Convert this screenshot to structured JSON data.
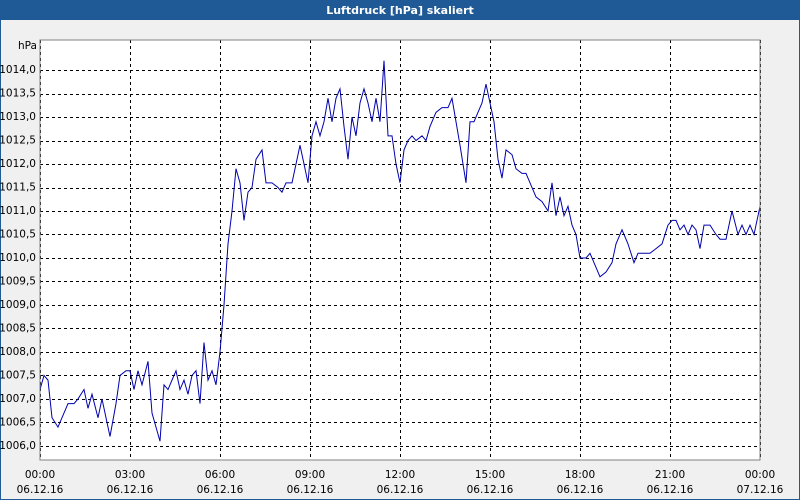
{
  "chart_data": {
    "type": "line",
    "title": "Luftdruck [hPa] skaliert",
    "y_unit": "hPa",
    "x": [
      0,
      8,
      16,
      24,
      36,
      44,
      56,
      68,
      76,
      88,
      96,
      104,
      116,
      124,
      132,
      140,
      152,
      160,
      172,
      180,
      188,
      196,
      204,
      216,
      224,
      232,
      240,
      248,
      256,
      264,
      272,
      280,
      288,
      296,
      304,
      312,
      320,
      328,
      336,
      344,
      352,
      360,
      368,
      376,
      384,
      392,
      400,
      408,
      416,
      424,
      432,
      444,
      452,
      464,
      476,
      484,
      492,
      504,
      520,
      528,
      536,
      544,
      552,
      560,
      568,
      576,
      584,
      592,
      600,
      608,
      616,
      624,
      632,
      640,
      648,
      656,
      664,
      672,
      680,
      688,
      696,
      704,
      712,
      720,
      728,
      736,
      744,
      752,
      764,
      772,
      780,
      792,
      804,
      816,
      824,
      832,
      840,
      852,
      860,
      868,
      876,
      884,
      892,
      900,
      908,
      916,
      924,
      932,
      944,
      952,
      964,
      972,
      980,
      992,
      1004,
      1016,
      1024,
      1032,
      1040,
      1048,
      1056,
      1064,
      1072,
      1080,
      1092,
      1100,
      1108,
      1120,
      1132,
      1144,
      1152,
      1164,
      1176,
      1188,
      1196,
      1208,
      1220,
      1232,
      1244,
      1256,
      1264,
      1272,
      1280,
      1288,
      1296,
      1304,
      1312,
      1320,
      1328,
      1340,
      1352,
      1360,
      1372,
      1384,
      1396,
      1404,
      1412,
      1420,
      1428,
      1440
    ],
    "series": [
      {
        "name": "Luftdruck",
        "color": "#0000b0",
        "values": [
          1007.2,
          1007.5,
          1007.4,
          1006.6,
          1006.4,
          1006.6,
          1006.9,
          1006.9,
          1007.0,
          1007.2,
          1006.8,
          1007.1,
          1006.6,
          1007.0,
          1006.6,
          1006.2,
          1006.9,
          1007.5,
          1007.6,
          1007.6,
          1007.2,
          1007.6,
          1007.3,
          1007.8,
          1006.7,
          1006.4,
          1006.1,
          1007.3,
          1007.2,
          1007.4,
          1007.6,
          1007.2,
          1007.4,
          1007.1,
          1007.5,
          1007.6,
          1006.9,
          1008.2,
          1007.4,
          1007.6,
          1007.3,
          1008.0,
          1009.0,
          1010.3,
          1011.0,
          1011.9,
          1011.6,
          1010.8,
          1011.4,
          1011.5,
          1012.1,
          1012.3,
          1011.6,
          1011.6,
          1011.5,
          1011.4,
          1011.6,
          1011.6,
          1012.4,
          1012.0,
          1011.6,
          1012.6,
          1012.9,
          1012.6,
          1012.9,
          1013.4,
          1012.9,
          1013.4,
          1013.6,
          1012.8,
          1012.1,
          1013.0,
          1012.6,
          1013.3,
          1013.6,
          1013.3,
          1012.9,
          1013.4,
          1012.9,
          1014.2,
          1012.6,
          1012.6,
          1012.0,
          1011.6,
          1012.3,
          1012.5,
          1012.6,
          1012.5,
          1012.6,
          1012.5,
          1012.8,
          1013.1,
          1013.2,
          1013.2,
          1013.4,
          1012.9,
          1012.4,
          1011.6,
          1012.9,
          1012.9,
          1013.1,
          1013.3,
          1013.7,
          1013.3,
          1012.9,
          1012.1,
          1011.7,
          1012.3,
          1012.2,
          1011.9,
          1011.8,
          1011.8,
          1011.6,
          1011.3,
          1011.2,
          1011.0,
          1011.6,
          1010.9,
          1011.3,
          1010.9,
          1011.1,
          1010.7,
          1010.5,
          1010.0,
          1010.0,
          1010.1,
          1009.9,
          1009.6,
          1009.7,
          1009.9,
          1010.3,
          1010.6,
          1010.3,
          1009.9,
          1010.1,
          1010.1,
          1010.1,
          1010.2,
          1010.3,
          1010.7,
          1010.8,
          1010.8,
          1010.6,
          1010.7,
          1010.5,
          1010.7,
          1010.6,
          1010.2,
          1010.7,
          1010.7,
          1010.5,
          1010.4,
          1010.4,
          1011.0,
          1010.5,
          1010.7,
          1010.5,
          1010.7,
          1010.5,
          1011.1
        ]
      }
    ],
    "xlim": [
      0,
      1440
    ],
    "xticks": [
      {
        "value": 0,
        "label": "00:00",
        "date": "06.12.16"
      },
      {
        "value": 180,
        "label": "03:00",
        "date": "06.12.16"
      },
      {
        "value": 360,
        "label": "06:00",
        "date": "06.12.16"
      },
      {
        "value": 540,
        "label": "09:00",
        "date": "06.12.16"
      },
      {
        "value": 720,
        "label": "12:00",
        "date": "06.12.16"
      },
      {
        "value": 900,
        "label": "15:00",
        "date": "06.12.16"
      },
      {
        "value": 1080,
        "label": "18:00",
        "date": "06.12.16"
      },
      {
        "value": 1260,
        "label": "21:00",
        "date": "06.12.16"
      },
      {
        "value": 1440,
        "label": "00:00",
        "date": "07.12.16"
      }
    ],
    "ylim": [
      1005.7,
      1014.64
    ],
    "yticks": [
      {
        "value": 1006,
        "label": "1006,0"
      },
      {
        "value": 1006.5,
        "label": "1006,5"
      },
      {
        "value": 1007,
        "label": "1007,0"
      },
      {
        "value": 1007.5,
        "label": "1007,5"
      },
      {
        "value": 1008,
        "label": "1008,0"
      },
      {
        "value": 1008.5,
        "label": "1008,5"
      },
      {
        "value": 1009,
        "label": "1009,0"
      },
      {
        "value": 1009.5,
        "label": "1009,5"
      },
      {
        "value": 1010,
        "label": "1010,0"
      },
      {
        "value": 1010.5,
        "label": "1010,5"
      },
      {
        "value": 1011,
        "label": "1011,0"
      },
      {
        "value": 1011.5,
        "label": "1011,5"
      },
      {
        "value": 1012,
        "label": "1012,0"
      },
      {
        "value": 1012.5,
        "label": "1012,5"
      },
      {
        "value": 1013,
        "label": "1013,0"
      },
      {
        "value": 1013.5,
        "label": "1013,5"
      },
      {
        "value": 1014,
        "label": "1014,0"
      }
    ],
    "grid": true
  }
}
